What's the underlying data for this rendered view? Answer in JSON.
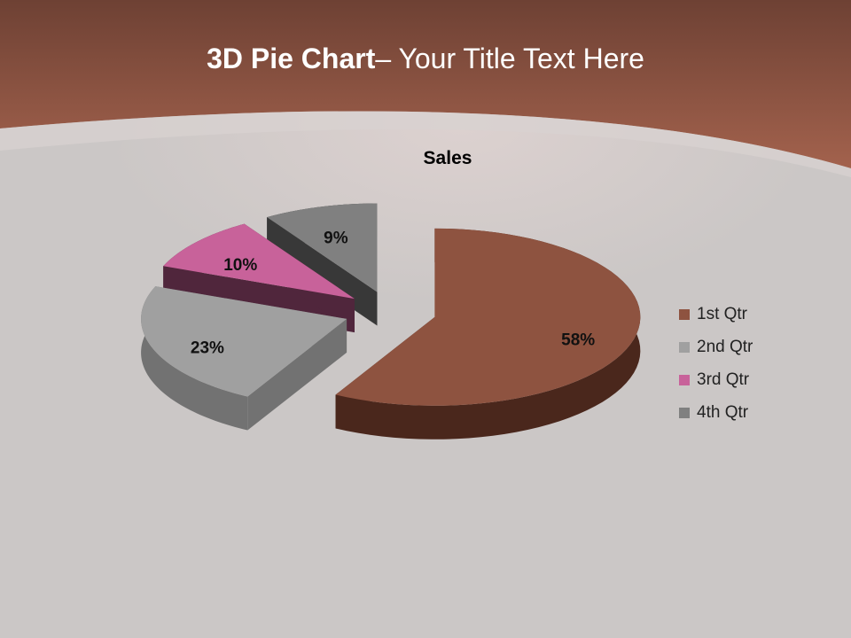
{
  "slide": {
    "title_bold": "3D Pie Chart",
    "title_rest": "– Your Title Text Here"
  },
  "colors": {
    "header": "#9a5b47",
    "background": "#cbc7c6"
  },
  "chart_data": {
    "type": "pie",
    "variant": "3d-exploded",
    "title": "Sales",
    "categories": [
      "1st Qtr",
      "2nd Qtr",
      "3rd Qtr",
      "4th Qtr"
    ],
    "values": [
      58,
      23,
      10,
      9
    ],
    "labels": [
      "58%",
      "23%",
      "10%",
      "9%"
    ],
    "colors": [
      "#8e5340",
      "#a0a0a0",
      "#c8629a",
      "#808080"
    ],
    "side_colors": [
      "#4a271c",
      "#727272",
      "#50263c",
      "#383838"
    ],
    "legend_position": "right"
  }
}
